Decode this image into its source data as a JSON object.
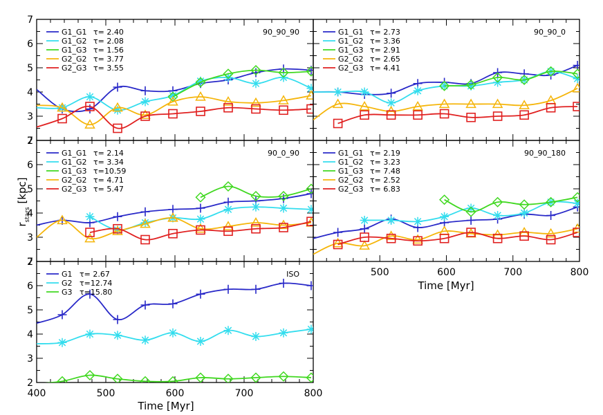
{
  "figure": {
    "ylabel_main": "r",
    "ylabel_sub": "stars",
    "ylabel_unit": " [kpc]",
    "xlabel": "Time [Myr]"
  },
  "chart_data": [
    {
      "type": "line",
      "title": "90_90_90",
      "xlim": [
        400,
        800
      ],
      "ylim": [
        2,
        7
      ],
      "x": [
        400,
        437,
        477,
        517,
        557,
        597,
        637,
        677,
        717,
        757,
        797
      ],
      "series": [
        {
          "name": "G1_G1",
          "tau": "τ= 2.40",
          "color": "#2828c8",
          "marker": "plus",
          "values": [
            4.1,
            3.3,
            3.3,
            4.2,
            4.05,
            4.05,
            4.35,
            4.5,
            4.8,
            4.95,
            4.9
          ]
        },
        {
          "name": "G1_G2",
          "tau": "τ= 2.08",
          "color": "#33ddee",
          "marker": "star",
          "values": [
            3.35,
            3.35,
            3.8,
            3.25,
            3.6,
            3.85,
            4.45,
            4.6,
            4.35,
            4.6,
            4.15
          ]
        },
        {
          "name": "G1_G3",
          "tau": "τ= 1.56",
          "color": "#40d820",
          "marker": "diamond",
          "values": [
            null,
            null,
            null,
            null,
            null,
            3.8,
            4.4,
            4.75,
            4.9,
            4.8,
            4.85
          ]
        },
        {
          "name": "G2_G2",
          "tau": "τ= 3.77",
          "color": "#f5b50a",
          "marker": "triangle",
          "values": [
            3.45,
            3.35,
            2.65,
            3.35,
            3.05,
            3.6,
            3.8,
            3.6,
            3.55,
            3.65,
            3.85
          ]
        },
        {
          "name": "G2_G3",
          "tau": "τ= 3.55",
          "color": "#e02020",
          "marker": "square",
          "values": [
            2.55,
            2.9,
            3.4,
            2.5,
            3.0,
            3.1,
            3.2,
            3.35,
            3.3,
            3.25,
            3.3
          ]
        }
      ]
    },
    {
      "type": "line",
      "title": "90_90_0",
      "xlim": [
        400,
        800
      ],
      "ylim": [
        2,
        7
      ],
      "x": [
        400,
        437,
        477,
        517,
        557,
        597,
        637,
        677,
        717,
        757,
        797
      ],
      "series": [
        {
          "name": "G1_G1",
          "tau": "τ= 2.73",
          "color": "#2828c8",
          "marker": "plus",
          "values": [
            4.0,
            4.0,
            3.9,
            3.95,
            4.35,
            4.4,
            4.35,
            4.8,
            4.75,
            4.7,
            5.1
          ]
        },
        {
          "name": "G1_G2",
          "tau": "τ= 3.36",
          "color": "#33ddee",
          "marker": "star",
          "values": [
            4.0,
            4.0,
            4.0,
            3.55,
            4.05,
            4.25,
            4.25,
            4.4,
            4.5,
            4.85,
            4.55
          ]
        },
        {
          "name": "G1_G3",
          "tau": "τ= 2.91",
          "color": "#40d820",
          "marker": "diamond",
          "values": [
            null,
            null,
            null,
            null,
            null,
            4.25,
            4.3,
            4.6,
            4.5,
            4.85,
            4.75
          ]
        },
        {
          "name": "G2_G2",
          "tau": "τ= 2.65",
          "color": "#f5b50a",
          "marker": "triangle",
          "values": [
            2.85,
            3.5,
            3.4,
            3.2,
            3.4,
            3.5,
            3.5,
            3.5,
            3.45,
            3.65,
            4.15
          ]
        },
        {
          "name": "G2_G3",
          "tau": "τ= 4.41",
          "color": "#e02020",
          "marker": "square",
          "values": [
            null,
            2.7,
            3.05,
            3.05,
            3.05,
            3.1,
            2.95,
            3.0,
            3.05,
            3.35,
            3.4
          ]
        }
      ]
    },
    {
      "type": "line",
      "title": "90_0_90",
      "xlim": [
        400,
        800
      ],
      "ylim": [
        2,
        7
      ],
      "x": [
        400,
        437,
        477,
        517,
        557,
        597,
        637,
        677,
        717,
        757,
        797
      ],
      "series": [
        {
          "name": "G1_G1",
          "tau": "τ= 2.14",
          "color": "#2828c8",
          "marker": "plus",
          "values": [
            3.5,
            3.7,
            3.6,
            3.85,
            4.05,
            4.15,
            4.2,
            4.45,
            4.5,
            4.6,
            4.8
          ]
        },
        {
          "name": "G1_G2",
          "tau": "τ= 3.34",
          "color": "#33ddee",
          "marker": "star",
          "values": [
            null,
            null,
            3.85,
            3.3,
            3.6,
            3.8,
            3.75,
            4.15,
            4.25,
            4.2,
            4.15
          ]
        },
        {
          "name": "G1_G3",
          "tau": "τ=10.59",
          "color": "#40d820",
          "marker": "diamond",
          "values": [
            null,
            null,
            null,
            null,
            null,
            null,
            4.65,
            5.1,
            4.7,
            4.7,
            5.0
          ]
        },
        {
          "name": "G2_G2",
          "tau": "τ= 4.71",
          "color": "#f5b50a",
          "marker": "triangle",
          "values": [
            3.0,
            3.7,
            2.95,
            3.25,
            3.55,
            3.8,
            3.35,
            3.45,
            3.6,
            3.5,
            3.6
          ]
        },
        {
          "name": "G2_G3",
          "tau": "τ= 5.47",
          "color": "#e02020",
          "marker": "square",
          "values": [
            null,
            null,
            3.2,
            3.35,
            2.9,
            3.15,
            3.3,
            3.25,
            3.35,
            3.4,
            3.65
          ]
        }
      ]
    },
    {
      "type": "line",
      "title": "90_90_180",
      "xlim": [
        400,
        800
      ],
      "ylim": [
        2,
        7
      ],
      "x": [
        400,
        437,
        477,
        517,
        557,
        597,
        637,
        677,
        717,
        757,
        797
      ],
      "series": [
        {
          "name": "G1_G1",
          "tau": "τ= 2.19",
          "color": "#2828c8",
          "marker": "plus",
          "values": [
            2.95,
            3.2,
            3.35,
            3.75,
            3.4,
            3.6,
            3.7,
            3.75,
            3.95,
            3.9,
            4.25
          ]
        },
        {
          "name": "G1_G2",
          "tau": "τ= 3.23",
          "color": "#33ddee",
          "marker": "star",
          "values": [
            null,
            null,
            3.7,
            3.7,
            3.65,
            3.85,
            4.2,
            3.9,
            4.0,
            4.45,
            4.4
          ]
        },
        {
          "name": "G1_G3",
          "tau": "τ= 7.48",
          "color": "#40d820",
          "marker": "diamond",
          "values": [
            null,
            null,
            null,
            null,
            null,
            4.55,
            4.05,
            4.45,
            4.35,
            4.45,
            4.65
          ]
        },
        {
          "name": "G2_G2",
          "tau": "τ= 2.52",
          "color": "#f5b50a",
          "marker": "triangle",
          "values": [
            2.3,
            2.75,
            2.65,
            3.05,
            2.9,
            3.25,
            3.15,
            3.1,
            3.2,
            3.15,
            3.35
          ]
        },
        {
          "name": "G2_G3",
          "tau": "τ= 6.83",
          "color": "#e02020",
          "marker": "square",
          "values": [
            null,
            2.7,
            3.0,
            2.95,
            2.85,
            2.95,
            3.2,
            2.95,
            3.05,
            2.9,
            3.2
          ]
        }
      ]
    },
    {
      "type": "line",
      "title": "ISO",
      "xlim": [
        400,
        800
      ],
      "ylim": [
        2,
        7
      ],
      "xticks": [
        400,
        500,
        600,
        700,
        800
      ],
      "x": [
        400,
        437,
        477,
        517,
        557,
        597,
        637,
        677,
        717,
        757,
        797
      ],
      "series": [
        {
          "name": "G1",
          "tau": "τ= 2.67",
          "color": "#2828c8",
          "marker": "plus",
          "values": [
            4.45,
            4.8,
            5.65,
            4.6,
            5.2,
            5.25,
            5.65,
            5.85,
            5.85,
            6.1,
            6.0
          ]
        },
        {
          "name": "G2",
          "tau": "τ=12.74",
          "color": "#33ddee",
          "marker": "star",
          "values": [
            3.6,
            3.65,
            4.0,
            3.95,
            3.75,
            4.05,
            3.7,
            4.15,
            3.9,
            4.05,
            4.2
          ]
        },
        {
          "name": "G3",
          "tau": "τ=15.80",
          "color": "#40d820",
          "marker": "diamond",
          "values": [
            1.95,
            2.05,
            2.3,
            2.15,
            2.05,
            2.05,
            2.2,
            2.15,
            2.2,
            2.25,
            2.2
          ]
        }
      ]
    }
  ]
}
